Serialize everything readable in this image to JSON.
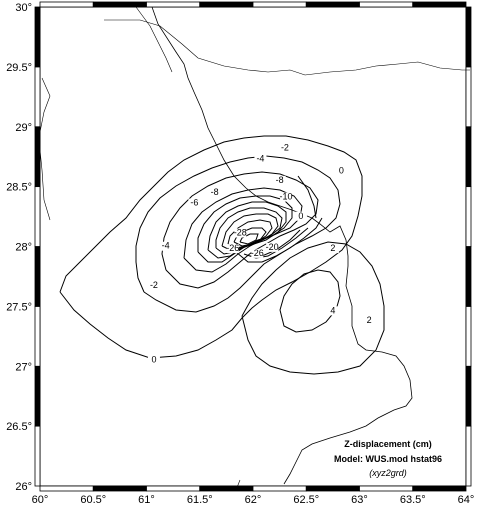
{
  "map": {
    "title_line1": "Z-displacement (cm)",
    "title_line2": "Model: WUS.mod hstat96",
    "source_note": "(xyz2grd)",
    "colors": {
      "frame": "#000000",
      "contour": "#000000",
      "coast": "#000000",
      "background": "#ffffff"
    }
  },
  "axes": {
    "x_ticks": [
      {
        "value": 60,
        "label": "60°"
      },
      {
        "value": 60.5,
        "label": "60.5°"
      },
      {
        "value": 61,
        "label": "61°"
      },
      {
        "value": 61.5,
        "label": "61.5°"
      },
      {
        "value": 62,
        "label": "62°"
      },
      {
        "value": 62.5,
        "label": "62.5°"
      },
      {
        "value": 63,
        "label": "63°"
      },
      {
        "value": 63.5,
        "label": "63.5°"
      },
      {
        "value": 64,
        "label": "64°"
      }
    ],
    "y_ticks": [
      {
        "value": 26,
        "label": "26°"
      },
      {
        "value": 26.5,
        "label": "26.5°"
      },
      {
        "value": 27,
        "label": "27°"
      },
      {
        "value": 27.5,
        "label": "27.5°"
      },
      {
        "value": 28,
        "label": "28°"
      },
      {
        "value": 28.5,
        "label": "28.5°"
      },
      {
        "value": 29,
        "label": "29°"
      },
      {
        "value": 29.5,
        "label": "29.5°"
      },
      {
        "value": 30,
        "label": "30°"
      }
    ],
    "xlim": [
      60,
      64
    ],
    "ylim": [
      26,
      30
    ]
  },
  "contour_labels": [
    {
      "text": "0",
      "lon": 61.07,
      "lat": 27.04
    },
    {
      "text": "-2",
      "lon": 61.07,
      "lat": 27.66
    },
    {
      "text": "-4",
      "lon": 61.18,
      "lat": 27.99
    },
    {
      "text": "-6",
      "lon": 61.45,
      "lat": 28.35
    },
    {
      "text": "-8",
      "lon": 61.64,
      "lat": 28.44
    },
    {
      "text": "-4",
      "lon": 62.07,
      "lat": 28.72
    },
    {
      "text": "-2",
      "lon": 62.3,
      "lat": 28.81
    },
    {
      "text": "0",
      "lon": 62.83,
      "lat": 28.62
    },
    {
      "text": "0",
      "lon": 62.45,
      "lat": 28.24
    },
    {
      "text": "-8",
      "lon": 62.25,
      "lat": 28.54
    },
    {
      "text": "-10",
      "lon": 62.31,
      "lat": 28.4
    },
    {
      "text": "-20",
      "lon": 62.18,
      "lat": 27.98
    },
    {
      "text": "-28",
      "lon": 61.88,
      "lat": 28.1
    },
    {
      "text": "-26",
      "lon": 61.81,
      "lat": 27.97
    },
    {
      "text": "-26",
      "lon": 62.04,
      "lat": 27.93
    },
    {
      "text": "2",
      "lon": 62.75,
      "lat": 27.97
    },
    {
      "text": "4",
      "lon": 62.75,
      "lat": 27.45
    },
    {
      "text": "2",
      "lon": 63.09,
      "lat": 27.37
    }
  ],
  "coastline_labels": []
}
